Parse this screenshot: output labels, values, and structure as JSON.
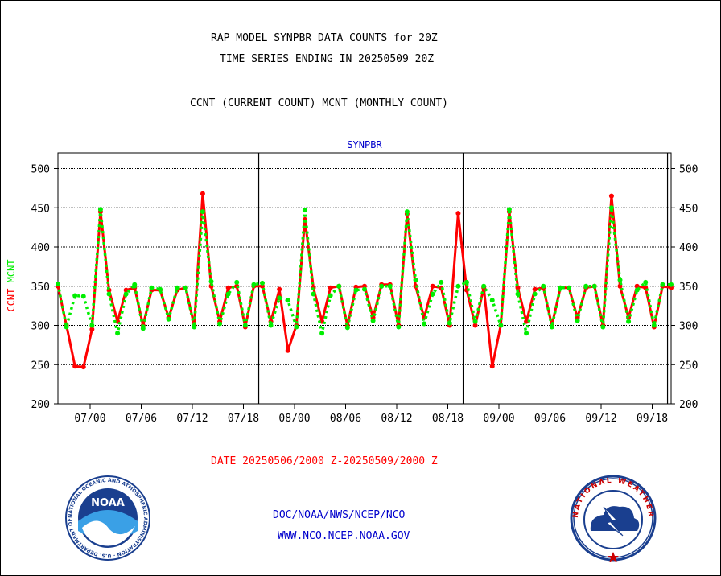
{
  "header": {
    "line1": "RAP MODEL SYNPBR DATA COUNTS for 20Z",
    "line2": "TIME SERIES ENDING IN 20250509 20Z",
    "line3": "CCNT (CURRENT COUNT) MCNT (MONTHLY COUNT)"
  },
  "footer": {
    "date_range": "DATE 20250506/2000 Z-20250509/2000 Z",
    "org": "DOC/NOAA/NWS/NCEP/NCO",
    "url": "WWW.NCO.NCEP.NOAA.GOV"
  },
  "logos": {
    "noaa_text": "NOAA",
    "noaa_ring": "NATIONAL OCEANIC AND ATMOSPHERIC ADMINISTRATION · U.S. DEPARTMENT OF COMMERCE",
    "nws_ring": "NATIONAL WEATHER SERVICE"
  },
  "chart_data": {
    "type": "line",
    "title": "SYNPBR",
    "ylabel_left": [
      "CCNT",
      "MCNT"
    ],
    "ylim": [
      200,
      520
    ],
    "yticks": [
      200,
      250,
      300,
      350,
      400,
      450,
      500
    ],
    "grid": true,
    "x_tick_labels": [
      "07/00",
      "07/06",
      "07/12",
      "07/18",
      "08/00",
      "08/06",
      "08/12",
      "08/18",
      "09/00",
      "09/06",
      "09/12",
      "09/18"
    ],
    "day_boundaries_after_tick": [
      "07/18",
      "08/18",
      "09/18"
    ],
    "colors": {
      "CCNT": "#ff0000",
      "MCNT": "#00ee00",
      "title": "#0000cc",
      "footer_date": "#ff0000",
      "footer_links": "#0000cc"
    },
    "series": [
      {
        "name": "CCNT",
        "values": [
          350,
          300,
          248,
          247,
          295,
          445,
          345,
          305,
          345,
          348,
          300,
          345,
          345,
          310,
          345,
          348,
          300,
          468,
          350,
          305,
          348,
          350,
          298,
          350,
          350,
          305,
          346,
          268,
          300,
          435,
          348,
          305,
          348,
          350,
          300,
          349,
          350,
          310,
          352,
          352,
          300,
          442,
          350,
          310,
          350,
          348,
          300,
          443,
          345,
          300,
          348,
          248,
          300,
          445,
          348,
          305,
          346,
          348,
          300,
          348,
          348,
          310,
          348,
          350,
          300,
          465,
          350,
          310,
          350,
          348,
          298,
          350,
          348
        ],
        "style": "solid"
      },
      {
        "name": "MCNT",
        "values": [
          353,
          298,
          338,
          337,
          300,
          448,
          340,
          290,
          340,
          352,
          296,
          348,
          346,
          308,
          348,
          348,
          298,
          445,
          356,
          302,
          340,
          355,
          300,
          352,
          354,
          300,
          335,
          332,
          298,
          447,
          340,
          290,
          338,
          350,
          297,
          345,
          346,
          306,
          350,
          350,
          298,
          445,
          358,
          302,
          340,
          355,
          303,
          350,
          355,
          305,
          350,
          332,
          300,
          448,
          340,
          290,
          340,
          350,
          298,
          348,
          348,
          306,
          350,
          350,
          298,
          450,
          358,
          305,
          345,
          355,
          300,
          352,
          352
        ],
        "style": "dotted"
      }
    ]
  }
}
